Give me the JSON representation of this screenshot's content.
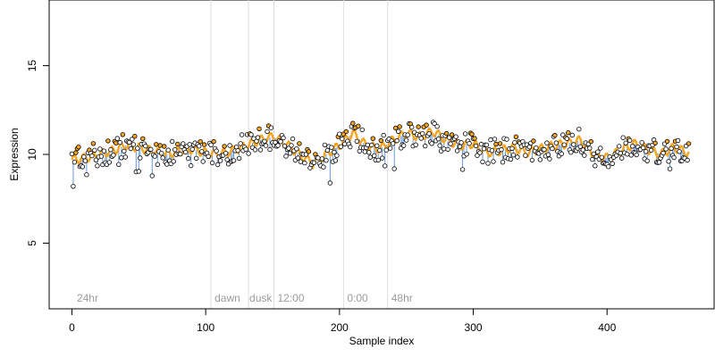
{
  "chart_data": {
    "type": "scatter",
    "title": "",
    "xlabel": "Sample index",
    "ylabel": "Expression",
    "xlim": [
      -17,
      480
    ],
    "ylim": [
      1.3,
      18.7
    ],
    "x_ticks": [
      0,
      100,
      200,
      300,
      400
    ],
    "y_ticks": [
      5,
      10,
      15
    ],
    "grid": false,
    "vertical_markers": [
      {
        "x": 104,
        "label": ""
      },
      {
        "x": 132,
        "label": ""
      },
      {
        "x": 151,
        "label": ""
      },
      {
        "x": 203,
        "label": ""
      },
      {
        "x": 236,
        "label": ""
      }
    ],
    "marker_labels": [
      {
        "x": 3,
        "label": "24hr"
      },
      {
        "x": 106,
        "label": "dawn"
      },
      {
        "x": 132,
        "label": "dusk"
      },
      {
        "x": 153,
        "label": "12:00"
      },
      {
        "x": 205,
        "label": "0:00"
      },
      {
        "x": 238,
        "label": "48hr"
      }
    ],
    "series": [
      {
        "type": "fitted-line",
        "color": "#f5a623"
      },
      {
        "type": "residual-segments",
        "color": "#6699dd"
      },
      {
        "type": "points",
        "fill": "#ffffff",
        "highlight_fill": "#f5a623"
      }
    ],
    "fit_knots": [
      [
        0,
        9.7
      ],
      [
        10,
        9.8
      ],
      [
        20,
        10.0
      ],
      [
        30,
        10.2
      ],
      [
        40,
        10.5
      ],
      [
        50,
        10.4
      ],
      [
        60,
        10.2
      ],
      [
        70,
        10.0
      ],
      [
        80,
        10.2
      ],
      [
        90,
        10.3
      ],
      [
        100,
        10.1
      ],
      [
        110,
        10.0
      ],
      [
        120,
        10.2
      ],
      [
        130,
        10.5
      ],
      [
        140,
        10.8
      ],
      [
        150,
        11.0
      ],
      [
        160,
        10.6
      ],
      [
        170,
        10.0
      ],
      [
        180,
        9.5
      ],
      [
        190,
        10.0
      ],
      [
        200,
        10.5
      ],
      [
        210,
        11.2
      ],
      [
        220,
        10.5
      ],
      [
        230,
        10.3
      ],
      [
        240,
        10.8
      ],
      [
        250,
        11.2
      ],
      [
        260,
        11.0
      ],
      [
        270,
        11.3
      ],
      [
        280,
        10.8
      ],
      [
        290,
        10.5
      ],
      [
        300,
        10.6
      ],
      [
        310,
        10.1
      ],
      [
        320,
        10.2
      ],
      [
        330,
        10.4
      ],
      [
        340,
        10.1
      ],
      [
        350,
        10.3
      ],
      [
        360,
        10.5
      ],
      [
        370,
        10.6
      ],
      [
        380,
        10.8
      ],
      [
        390,
        10.0
      ],
      [
        400,
        9.8
      ],
      [
        410,
        10.2
      ],
      [
        420,
        10.6
      ],
      [
        430,
        10.3
      ],
      [
        440,
        10.0
      ],
      [
        450,
        10.4
      ],
      [
        460,
        10.1
      ]
    ],
    "n_points": 462,
    "points_y_range": [
      8.2,
      11.9
    ]
  }
}
